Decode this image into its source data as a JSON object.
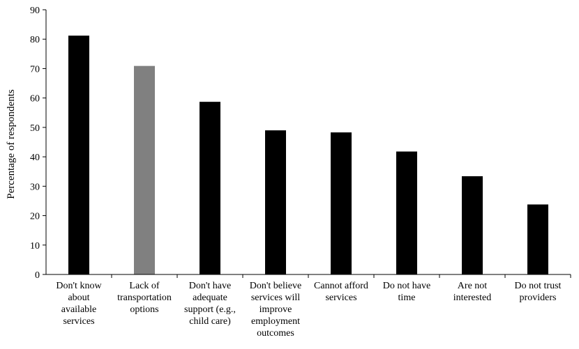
{
  "chart_data": {
    "type": "bar",
    "title": "",
    "xlabel": "",
    "ylabel": "Percentage of respondents",
    "ylim": [
      0,
      90
    ],
    "yticks": [
      0,
      10,
      20,
      30,
      40,
      50,
      60,
      70,
      80,
      90
    ],
    "grid": false,
    "legend": "none",
    "categories": [
      [
        "Don't know",
        "about",
        "available",
        "services"
      ],
      [
        "Lack of",
        "transportation",
        "options"
      ],
      [
        "Don't have",
        "adequate",
        "support (e.g.,",
        "child care)"
      ],
      [
        "Don't believe",
        "services will",
        "improve",
        "employment",
        "outcomes"
      ],
      [
        "Cannot afford",
        "services"
      ],
      [
        "Do not have",
        "time"
      ],
      [
        "Are not",
        "interested"
      ],
      [
        "Do not trust",
        "providers"
      ]
    ],
    "values": [
      81.2,
      70.9,
      58.7,
      49.0,
      48.3,
      41.8,
      33.4,
      23.8
    ],
    "colors": [
      "#000000",
      "#808080",
      "#000000",
      "#000000",
      "#000000",
      "#000000",
      "#000000",
      "#000000"
    ]
  }
}
